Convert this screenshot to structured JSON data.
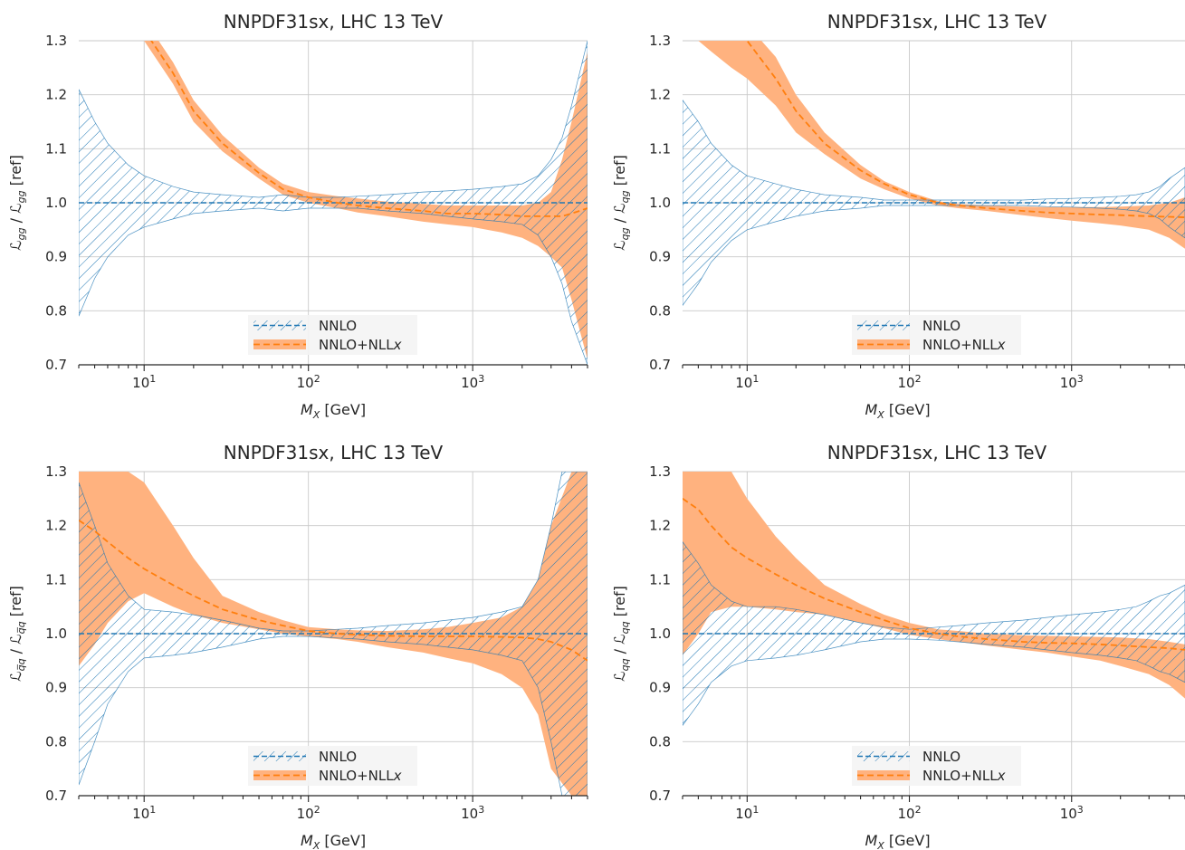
{
  "figure_title": "",
  "colors": {
    "nnlo": "#1f77b4",
    "nnlo_nllx": "#ff7f0e",
    "nnlo_nllx_band": "#ffb27f",
    "grid": "#c9c9c9",
    "axis": "#262626"
  },
  "chart_data": [
    {
      "type": "area",
      "title": "NNPDF31sx, LHC 13 TeV",
      "xlabel": "M_X [GeV]",
      "ylabel": "L_gg / L_gg [ref]",
      "xscale": "log",
      "xlim": [
        4,
        5000
      ],
      "ylim": [
        0.7,
        1.3
      ],
      "xticks": [
        10,
        100,
        1000
      ],
      "xtick_labels": [
        "10^1",
        "10^2",
        "10^3"
      ],
      "yticks": [
        0.7,
        0.8,
        0.9,
        1.0,
        1.1,
        1.2,
        1.3
      ],
      "ytick_labels": [
        "0.7",
        "0.8",
        "0.9",
        "1.0",
        "1.1",
        "1.2",
        "1.3"
      ],
      "grid": true,
      "legend_position": "lower-center",
      "legend": [
        "NNLO",
        "NNLO+NLLx"
      ],
      "x": [
        4,
        5,
        6,
        8,
        10,
        15,
        20,
        30,
        50,
        70,
        100,
        150,
        200,
        300,
        500,
        700,
        1000,
        1500,
        2000,
        2500,
        3000,
        3500,
        4000,
        5000
      ],
      "series": [
        {
          "name": "NNLO",
          "central": [
            1.0,
            1.0,
            1.0,
            1.0,
            1.0,
            1.0,
            1.0,
            1.0,
            1.0,
            1.0,
            1.0,
            1.0,
            1.0,
            1.0,
            1.0,
            1.0,
            1.0,
            1.0,
            1.0,
            1.0,
            1.0,
            1.0,
            1.0,
            1.0
          ],
          "upper": [
            1.21,
            1.15,
            1.11,
            1.07,
            1.05,
            1.03,
            1.02,
            1.015,
            1.01,
            1.015,
            1.01,
            1.01,
            1.012,
            1.015,
            1.02,
            1.022,
            1.025,
            1.03,
            1.035,
            1.05,
            1.08,
            1.12,
            1.18,
            1.3
          ],
          "lower": [
            0.79,
            0.86,
            0.9,
            0.94,
            0.955,
            0.97,
            0.98,
            0.985,
            0.99,
            0.985,
            0.99,
            0.99,
            0.99,
            0.985,
            0.98,
            0.975,
            0.97,
            0.965,
            0.96,
            0.94,
            0.9,
            0.85,
            0.78,
            0.7
          ]
        },
        {
          "name": "NNLO+NLLx",
          "x": [
            10,
            15,
            20,
            30,
            50,
            70,
            100,
            150,
            200,
            300,
            500,
            700,
            1000,
            1500,
            2000,
            2500,
            3000,
            3500,
            4000,
            5000
          ],
          "central": [
            1.32,
            1.24,
            1.17,
            1.11,
            1.055,
            1.025,
            1.01,
            1.0,
            0.995,
            0.99,
            0.985,
            0.98,
            0.98,
            0.978,
            0.975,
            0.975,
            0.975,
            0.975,
            0.98,
            0.99
          ],
          "upper": [
            1.34,
            1.26,
            1.19,
            1.125,
            1.065,
            1.035,
            1.02,
            1.012,
            1.008,
            1.002,
            0.998,
            0.995,
            0.995,
            0.995,
            0.995,
            1.0,
            1.02,
            1.08,
            1.15,
            1.28
          ],
          "lower": [
            1.3,
            1.22,
            1.15,
            1.095,
            1.045,
            1.015,
            1.0,
            0.99,
            0.982,
            0.975,
            0.965,
            0.96,
            0.955,
            0.945,
            0.935,
            0.92,
            0.9,
            0.88,
            0.82,
            0.71
          ]
        }
      ]
    },
    {
      "type": "area",
      "title": "NNPDF31sx, LHC 13 TeV",
      "xlabel": "M_X [GeV]",
      "ylabel": "L_qg / L_qg [ref]",
      "xscale": "log",
      "xlim": [
        4,
        5000
      ],
      "ylim": [
        0.7,
        1.3
      ],
      "xticks": [
        10,
        100,
        1000
      ],
      "xtick_labels": [
        "10^1",
        "10^2",
        "10^3"
      ],
      "yticks": [
        0.7,
        0.8,
        0.9,
        1.0,
        1.1,
        1.2,
        1.3
      ],
      "ytick_labels": [
        "0.7",
        "0.8",
        "0.9",
        "1.0",
        "1.1",
        "1.2",
        "1.3"
      ],
      "grid": true,
      "legend_position": "lower-center",
      "legend": [
        "NNLO",
        "NNLO+NLLx"
      ],
      "x": [
        4,
        5,
        6,
        8,
        10,
        15,
        20,
        30,
        50,
        70,
        100,
        150,
        200,
        300,
        500,
        700,
        1000,
        1500,
        2000,
        2500,
        3000,
        3500,
        4000,
        5000
      ],
      "series": [
        {
          "name": "NNLO",
          "central": [
            1.0,
            1.0,
            1.0,
            1.0,
            1.0,
            1.0,
            1.0,
            1.0,
            1.0,
            1.0,
            1.0,
            1.0,
            1.0,
            1.0,
            1.0,
            1.0,
            1.0,
            1.0,
            1.0,
            1.0,
            1.0,
            1.0,
            1.0,
            1.0
          ],
          "upper": [
            1.19,
            1.15,
            1.11,
            1.07,
            1.05,
            1.035,
            1.025,
            1.015,
            1.01,
            1.005,
            1.005,
            1.005,
            1.005,
            1.005,
            1.005,
            1.007,
            1.008,
            1.01,
            1.012,
            1.015,
            1.02,
            1.03,
            1.045,
            1.065
          ],
          "lower": [
            0.81,
            0.85,
            0.89,
            0.93,
            0.95,
            0.965,
            0.975,
            0.985,
            0.99,
            0.995,
            0.995,
            0.995,
            0.995,
            0.995,
            0.995,
            0.993,
            0.992,
            0.99,
            0.988,
            0.985,
            0.98,
            0.97,
            0.955,
            0.935
          ]
        },
        {
          "name": "NNLO+NLLx",
          "x": [
            5,
            6,
            8,
            10,
            15,
            20,
            30,
            50,
            70,
            100,
            150,
            200,
            300,
            500,
            700,
            1000,
            1500,
            2000,
            3000,
            4000,
            5000
          ],
          "central": [
            1.36,
            1.35,
            1.32,
            1.3,
            1.23,
            1.17,
            1.11,
            1.06,
            1.035,
            1.015,
            1.0,
            0.995,
            0.99,
            0.985,
            0.982,
            0.98,
            0.978,
            0.977,
            0.975,
            0.974,
            0.973
          ],
          "upper": [
            1.38,
            1.37,
            1.35,
            1.33,
            1.27,
            1.2,
            1.13,
            1.07,
            1.04,
            1.02,
            1.003,
            0.998,
            0.995,
            0.993,
            0.992,
            0.992,
            0.992,
            0.993,
            0.995,
            1.0,
            1.01
          ],
          "lower": [
            1.3,
            1.28,
            1.25,
            1.23,
            1.18,
            1.13,
            1.09,
            1.045,
            1.025,
            1.008,
            0.995,
            0.99,
            0.985,
            0.977,
            0.972,
            0.967,
            0.962,
            0.958,
            0.95,
            0.935,
            0.915
          ]
        }
      ]
    },
    {
      "type": "area",
      "title": "NNPDF31sx, LHC 13 TeV",
      "xlabel": "M_X [GeV]",
      "ylabel": "L_qq̄ / L_qq̄ [ref]",
      "xscale": "log",
      "xlim": [
        4,
        5000
      ],
      "ylim": [
        0.7,
        1.3
      ],
      "xticks": [
        10,
        100,
        1000
      ],
      "xtick_labels": [
        "10^1",
        "10^2",
        "10^3"
      ],
      "yticks": [
        0.7,
        0.8,
        0.9,
        1.0,
        1.1,
        1.2,
        1.3
      ],
      "ytick_labels": [
        "0.7",
        "0.8",
        "0.9",
        "1.0",
        "1.1",
        "1.2",
        "1.3"
      ],
      "grid": true,
      "legend_position": "lower-center",
      "legend": [
        "NNLO",
        "NNLO+NLLx"
      ],
      "x": [
        4,
        5,
        6,
        8,
        10,
        15,
        20,
        30,
        50,
        70,
        100,
        150,
        200,
        300,
        500,
        700,
        1000,
        1500,
        2000,
        2500,
        3000,
        3500,
        4000,
        5000
      ],
      "series": [
        {
          "name": "NNLO",
          "central": [
            1.0,
            1.0,
            1.0,
            1.0,
            1.0,
            1.0,
            1.0,
            1.0,
            1.0,
            1.0,
            1.0,
            1.0,
            1.0,
            1.0,
            1.0,
            1.0,
            1.0,
            1.0,
            1.0,
            1.0,
            1.0,
            1.0,
            1.0,
            1.0
          ],
          "upper": [
            1.28,
            1.2,
            1.13,
            1.07,
            1.045,
            1.04,
            1.035,
            1.025,
            1.01,
            1.005,
            1.005,
            1.008,
            1.01,
            1.015,
            1.02,
            1.025,
            1.03,
            1.04,
            1.05,
            1.1,
            1.2,
            1.3,
            1.3,
            1.3
          ],
          "lower": [
            0.72,
            0.8,
            0.87,
            0.93,
            0.955,
            0.96,
            0.965,
            0.975,
            0.99,
            0.995,
            0.995,
            0.992,
            0.99,
            0.985,
            0.98,
            0.975,
            0.97,
            0.96,
            0.95,
            0.9,
            0.8,
            0.7,
            0.7,
            0.7
          ]
        },
        {
          "name": "NNLO+NLLx",
          "x": [
            4,
            5,
            6,
            8,
            10,
            15,
            20,
            30,
            50,
            70,
            100,
            150,
            200,
            300,
            500,
            700,
            1000,
            1500,
            2000,
            2500,
            3000,
            4000,
            5000
          ],
          "central": [
            1.21,
            1.19,
            1.17,
            1.14,
            1.12,
            1.09,
            1.07,
            1.045,
            1.025,
            1.015,
            1.005,
            1.0,
            0.998,
            0.996,
            0.995,
            0.995,
            0.995,
            0.994,
            0.993,
            0.99,
            0.985,
            0.97,
            0.95
          ],
          "upper": [
            1.3,
            1.3,
            1.3,
            1.3,
            1.28,
            1.2,
            1.14,
            1.07,
            1.04,
            1.025,
            1.012,
            1.008,
            1.006,
            1.005,
            1.008,
            1.012,
            1.02,
            1.03,
            1.05,
            1.1,
            1.2,
            1.3,
            1.3
          ],
          "lower": [
            0.94,
            0.98,
            1.02,
            1.06,
            1.075,
            1.05,
            1.035,
            1.02,
            1.008,
            1.0,
            0.995,
            0.99,
            0.985,
            0.975,
            0.965,
            0.955,
            0.945,
            0.925,
            0.9,
            0.85,
            0.75,
            0.7,
            0.7
          ]
        }
      ]
    },
    {
      "type": "area",
      "title": "NNPDF31sx, LHC 13 TeV",
      "xlabel": "M_X [GeV]",
      "ylabel": "L_qq / L_qq [ref]",
      "xscale": "log",
      "xlim": [
        4,
        5000
      ],
      "ylim": [
        0.7,
        1.3
      ],
      "xticks": [
        10,
        100,
        1000
      ],
      "xtick_labels": [
        "10^1",
        "10^2",
        "10^3"
      ],
      "yticks": [
        0.7,
        0.8,
        0.9,
        1.0,
        1.1,
        1.2,
        1.3
      ],
      "ytick_labels": [
        "0.7",
        "0.8",
        "0.9",
        "1.0",
        "1.1",
        "1.2",
        "1.3"
      ],
      "grid": true,
      "legend_position": "lower-center",
      "legend": [
        "NNLO",
        "NNLO+NLLx"
      ],
      "x": [
        4,
        5,
        6,
        8,
        10,
        15,
        20,
        30,
        50,
        70,
        100,
        150,
        200,
        300,
        500,
        700,
        1000,
        1500,
        2000,
        2500,
        3000,
        3500,
        4000,
        5000
      ],
      "series": [
        {
          "name": "NNLO",
          "central": [
            1.0,
            1.0,
            1.0,
            1.0,
            1.0,
            1.0,
            1.0,
            1.0,
            1.0,
            1.0,
            1.0,
            1.0,
            1.0,
            1.0,
            1.0,
            1.0,
            1.0,
            1.0,
            1.0,
            1.0,
            1.0,
            1.0,
            1.0,
            1.0
          ],
          "upper": [
            1.17,
            1.13,
            1.09,
            1.06,
            1.05,
            1.05,
            1.045,
            1.035,
            1.02,
            1.012,
            1.008,
            1.012,
            1.015,
            1.02,
            1.025,
            1.03,
            1.035,
            1.04,
            1.045,
            1.05,
            1.06,
            1.07,
            1.075,
            1.09
          ],
          "lower": [
            0.83,
            0.87,
            0.91,
            0.94,
            0.95,
            0.955,
            0.96,
            0.97,
            0.985,
            0.99,
            0.99,
            0.988,
            0.985,
            0.98,
            0.975,
            0.97,
            0.965,
            0.96,
            0.955,
            0.95,
            0.94,
            0.93,
            0.925,
            0.91
          ]
        },
        {
          "name": "NNLO+NLLx",
          "x": [
            4,
            5,
            6,
            8,
            10,
            15,
            20,
            30,
            50,
            70,
            100,
            150,
            200,
            300,
            500,
            700,
            1000,
            1500,
            2000,
            3000,
            4000,
            5000
          ],
          "central": [
            1.25,
            1.23,
            1.2,
            1.16,
            1.14,
            1.11,
            1.09,
            1.065,
            1.04,
            1.025,
            1.01,
            1.0,
            0.995,
            0.99,
            0.985,
            0.983,
            0.982,
            0.98,
            0.978,
            0.975,
            0.973,
            0.97
          ],
          "upper": [
            1.3,
            1.3,
            1.3,
            1.3,
            1.25,
            1.18,
            1.14,
            1.09,
            1.055,
            1.035,
            1.02,
            1.008,
            1.005,
            1.0,
            0.997,
            0.996,
            0.995,
            0.994,
            0.993,
            0.99,
            0.985,
            0.98
          ],
          "lower": [
            0.96,
            1.0,
            1.04,
            1.05,
            1.05,
            1.045,
            1.04,
            1.035,
            1.02,
            1.01,
            0.998,
            0.99,
            0.985,
            0.978,
            0.97,
            0.965,
            0.958,
            0.95,
            0.94,
            0.925,
            0.905,
            0.88
          ]
        }
      ]
    }
  ]
}
